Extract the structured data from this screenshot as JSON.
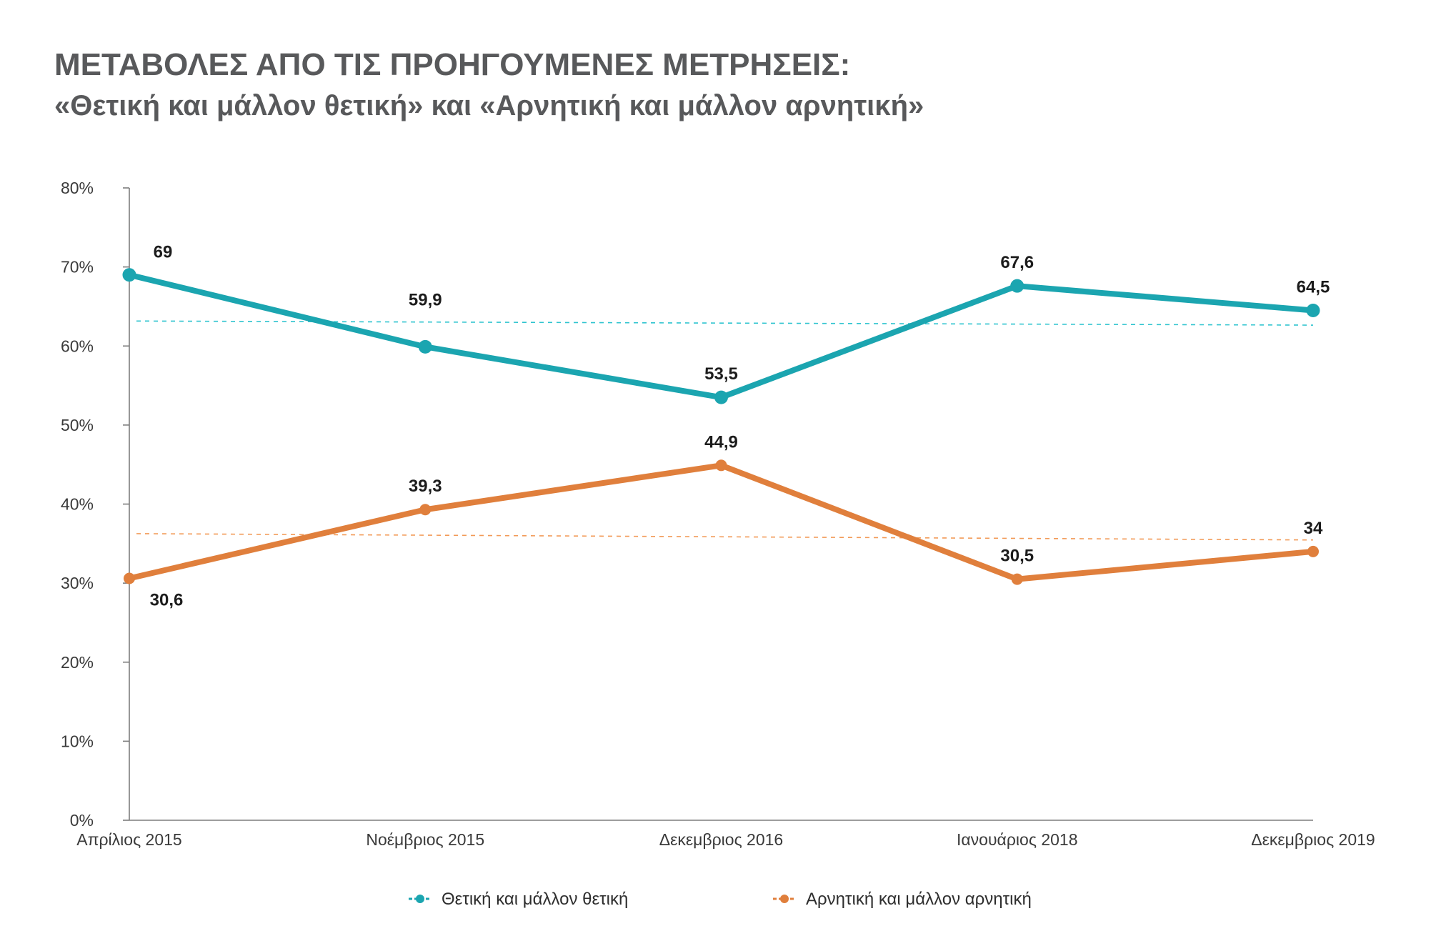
{
  "chart_data": {
    "type": "line",
    "title": "ΜΕΤΑΒΟΛΕΣ ΑΠΟ ΤΙΣ ΠΡΟΗΓΟΥΜΕΝΕΣ ΜΕΤΡΗΣΕΙΣ:",
    "subtitle": "«Θετική και μάλλον θετική» και «Αρνητική και μάλλον αρνητική»",
    "xlabel": "",
    "ylabel": "",
    "categories": [
      "Απρίλιος 2015",
      "Νοέμβριος 2015",
      "Δεκεμβριος 2016",
      "Ιανουάριος 2018",
      "Δεκεμβριος 2019"
    ],
    "ylim": [
      0,
      80
    ],
    "yticks": [
      0,
      10,
      20,
      30,
      40,
      50,
      60,
      70,
      80
    ],
    "ytick_labels": [
      "0%",
      "10%",
      "20%",
      "30%",
      "40%",
      "50%",
      "60%",
      "70%",
      "80%"
    ],
    "grid": false,
    "legend": "bottom-center",
    "series": [
      {
        "name": "Θετική και μάλλον θετική",
        "color": "#1ba5b0",
        "trend_color": "#2fc4cf",
        "trendline": "linear",
        "values": [
          69,
          59.9,
          53.5,
          67.6,
          64.5
        ],
        "labels": [
          "69",
          "59,9",
          "53,5",
          "67,6",
          "64,5"
        ]
      },
      {
        "name": "Αρνητική και μάλλον αρνητική",
        "color": "#e07f3c",
        "trend_color": "#f29a57",
        "trendline": "linear",
        "values": [
          30.6,
          39.3,
          44.9,
          30.5,
          34
        ],
        "labels": [
          "30,6",
          "39,3",
          "44,9",
          "30,5",
          "34"
        ]
      }
    ]
  }
}
